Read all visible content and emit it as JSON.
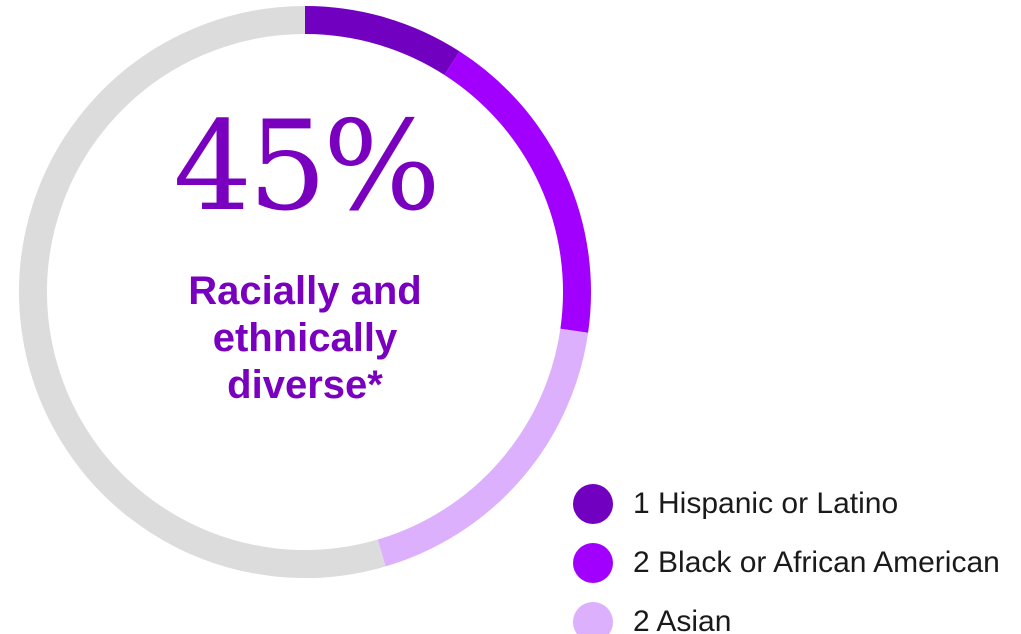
{
  "chart_data": {
    "type": "pie",
    "donut": true,
    "center": {
      "value": "45%",
      "label_lines": [
        "Racially and",
        "ethnically",
        "diverse*"
      ]
    },
    "slices": [
      {
        "label": "1 Hispanic or Latino",
        "value": 1,
        "color": "#7200c0",
        "legend": true
      },
      {
        "label": "2 Black or African American",
        "value": 2,
        "color": "#a100ff",
        "legend": true
      },
      {
        "label": "2 Asian",
        "value": 2,
        "color": "#dcb0fc",
        "legend": true
      },
      {
        "label": "",
        "value": 6,
        "color": "#dcdcdc",
        "legend": false
      }
    ],
    "legend_position": "bottom-right"
  }
}
